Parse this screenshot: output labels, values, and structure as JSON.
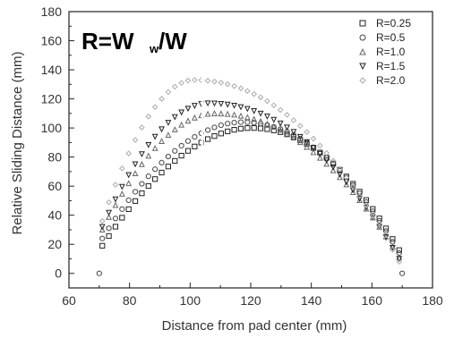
{
  "chart_data": {
    "type": "scatter",
    "title": "",
    "annotation": {
      "main": "R=W",
      "sub": "w",
      "tail": "/W"
    },
    "xlabel": "Distance from pad center (mm)",
    "ylabel": "Relative Sliding Distance (mm)",
    "xlim": [
      60,
      180
    ],
    "ylim": [
      -10,
      180
    ],
    "xticks": [
      60,
      80,
      100,
      120,
      140,
      160,
      180
    ],
    "yticks": [
      0,
      20,
      40,
      60,
      80,
      100,
      120,
      140,
      160,
      180
    ],
    "grid": false,
    "legend_position": "top-right",
    "series": [
      {
        "name": "R=0.25",
        "marker": "square",
        "peak_x": 120,
        "peak_y": 100
      },
      {
        "name": "R=0.5",
        "marker": "circle",
        "peak_x": 117,
        "peak_y": 104
      },
      {
        "name": "R=1.0",
        "marker": "triangle-up",
        "peak_x": 108,
        "peak_y": 110
      },
      {
        "name": "R=1.5",
        "marker": "triangle-down",
        "peak_x": 106,
        "peak_y": 117
      },
      {
        "name": "R=2.0",
        "marker": "diamond",
        "peak_x": 101,
        "peak_y": 133
      }
    ],
    "x_start": 71,
    "x_end": 169,
    "start_values": [
      19,
      24,
      30,
      32,
      36
    ],
    "end_values": [
      16,
      14,
      11,
      10,
      8
    ],
    "isolated_points": [
      {
        "x": 70,
        "y": 0,
        "marker": "circle"
      },
      {
        "x": 170,
        "y": 0,
        "marker": "circle"
      }
    ]
  }
}
